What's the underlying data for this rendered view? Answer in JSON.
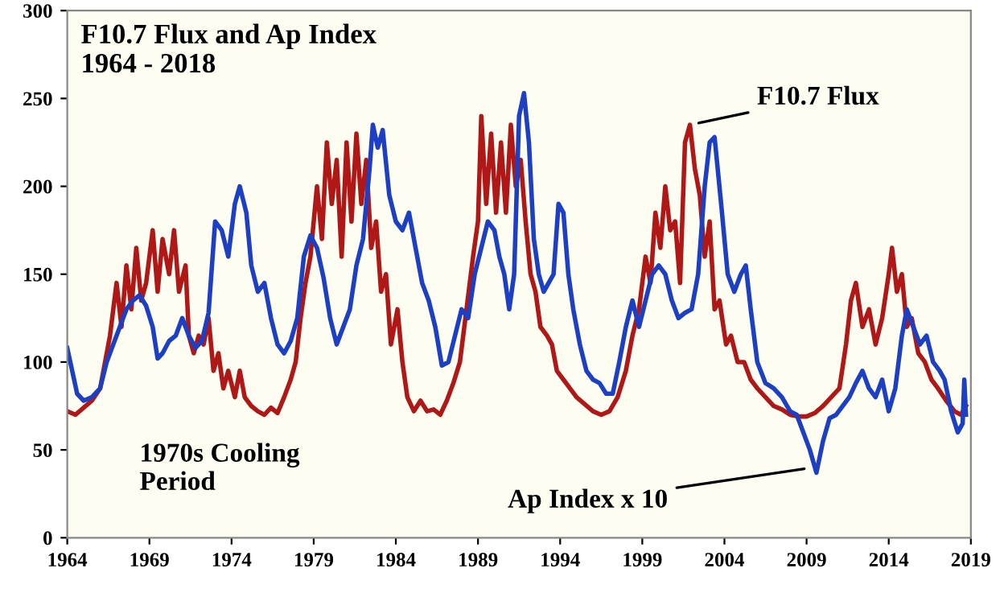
{
  "chart_data": {
    "type": "line",
    "title": "F10.7 Flux and Ap Index\n1964 - 2018",
    "xlim": [
      1964,
      2019
    ],
    "xticks": [
      1964,
      1969,
      1974,
      1979,
      1984,
      1989,
      1994,
      1999,
      2004,
      2009,
      2014,
      2019
    ],
    "ylim": [
      0,
      300
    ],
    "yticks": [
      0,
      50,
      100,
      150,
      200,
      250,
      300
    ],
    "grid": false,
    "marker": "none",
    "line_style": "solid",
    "series": [
      {
        "color": "#b01818",
        "x": [
          1964.0,
          1964.5,
          1965,
          1965.5,
          1966,
          1966.3,
          1966.6,
          1967,
          1967.3,
          1967.6,
          1967.9,
          1968.2,
          1968.5,
          1968.8,
          1969.2,
          1969.5,
          1969.8,
          1970.2,
          1970.5,
          1970.8,
          1971.2,
          1971.4,
          1971.7,
          1972,
          1972.3,
          1972.6,
          1972.9,
          1973.2,
          1973.5,
          1973.8,
          1974.2,
          1974.5,
          1974.8,
          1975.2,
          1975.6,
          1976,
          1976.4,
          1976.8,
          1977.2,
          1977.6,
          1977.9,
          1978.2,
          1978.5,
          1978.8,
          1979.2,
          1979.5,
          1979.8,
          1980.1,
          1980.4,
          1980.7,
          1981,
          1981.3,
          1981.6,
          1981.9,
          1982.2,
          1982.5,
          1982.8,
          1983.1,
          1983.4,
          1983.7,
          1984.1,
          1984.4,
          1984.7,
          1985.1,
          1985.5,
          1985.9,
          1986.3,
          1986.7,
          1987.1,
          1987.5,
          1987.9,
          1988.3,
          1988.7,
          1989.0,
          1989.2,
          1989.5,
          1989.8,
          1990.1,
          1990.4,
          1990.7,
          1991.0,
          1991.3,
          1991.6,
          1991.9,
          1992.2,
          1992.5,
          1992.8,
          1993.2,
          1993.5,
          1993.8,
          1994.2,
          1994.6,
          1995,
          1995.5,
          1996,
          1996.5,
          1997,
          1997.5,
          1998,
          1998.4,
          1998.8,
          1999.2,
          1999.5,
          1999.8,
          2000.1,
          2000.4,
          2000.7,
          2001.0,
          2001.3,
          2001.6,
          2001.9,
          2002.2,
          2002.5,
          2002.8,
          2003.1,
          2003.4,
          2003.7,
          2004.1,
          2004.4,
          2004.8,
          2005.2,
          2005.6,
          2006,
          2006.5,
          2007,
          2007.5,
          2008,
          2008.5,
          2009,
          2009.5,
          2010,
          2010.5,
          2011,
          2011.4,
          2011.7,
          2012.0,
          2012.4,
          2012.8,
          2013.2,
          2013.6,
          2014.0,
          2014.2,
          2014.5,
          2014.8,
          2015.1,
          2015.4,
          2015.8,
          2016.2,
          2016.6,
          2017,
          2017.5,
          2018,
          2018.4,
          2018.7
        ],
        "values": [
          72,
          70,
          74,
          78,
          85,
          100,
          115,
          145,
          120,
          155,
          130,
          165,
          135,
          145,
          175,
          140,
          170,
          150,
          175,
          140,
          155,
          115,
          105,
          115,
          110,
          125,
          95,
          105,
          85,
          95,
          80,
          95,
          80,
          75,
          72,
          70,
          74,
          71,
          80,
          90,
          100,
          125,
          145,
          160,
          200,
          170,
          225,
          190,
          215,
          160,
          225,
          180,
          230,
          190,
          215,
          165,
          180,
          140,
          150,
          110,
          130,
          100,
          80,
          72,
          78,
          72,
          73,
          70,
          78,
          88,
          100,
          130,
          160,
          180,
          240,
          190,
          230,
          185,
          225,
          185,
          235,
          200,
          215,
          180,
          150,
          140,
          120,
          115,
          110,
          95,
          90,
          85,
          80,
          76,
          72,
          70,
          72,
          80,
          95,
          115,
          130,
          160,
          145,
          185,
          165,
          200,
          175,
          180,
          145,
          225,
          235,
          210,
          195,
          160,
          180,
          130,
          135,
          110,
          115,
          100,
          100,
          90,
          85,
          80,
          75,
          73,
          70,
          69,
          69,
          71,
          75,
          80,
          85,
          110,
          135,
          145,
          120,
          130,
          110,
          125,
          150,
          165,
          140,
          150,
          120,
          125,
          105,
          100,
          90,
          85,
          78,
          72,
          70,
          75
        ]
      },
      {
        "color": "#1c3fc4",
        "x": [
          1964.0,
          1964.3,
          1964.6,
          1965,
          1965.5,
          1966,
          1966.4,
          1966.8,
          1967.2,
          1967.6,
          1968,
          1968.4,
          1968.8,
          1969.2,
          1969.5,
          1969.8,
          1970.2,
          1970.6,
          1971,
          1971.4,
          1971.8,
          1972.2,
          1972.6,
          1973.0,
          1973.4,
          1973.8,
          1974.2,
          1974.5,
          1974.9,
          1975.2,
          1975.6,
          1976,
          1976.4,
          1976.8,
          1977.2,
          1977.6,
          1978,
          1978.4,
          1978.8,
          1979.2,
          1979.6,
          1980,
          1980.4,
          1980.8,
          1981.2,
          1981.6,
          1982,
          1982.4,
          1982.6,
          1982.9,
          1983.2,
          1983.6,
          1984,
          1984.4,
          1984.8,
          1985.2,
          1985.6,
          1986,
          1986.4,
          1986.8,
          1987.2,
          1987.6,
          1988,
          1988.4,
          1988.8,
          1989.2,
          1989.6,
          1990,
          1990.3,
          1990.6,
          1990.9,
          1991.2,
          1991.5,
          1991.8,
          1992.1,
          1992.4,
          1992.7,
          1993,
          1993.3,
          1993.6,
          1993.9,
          1994.2,
          1994.5,
          1994.8,
          1995.2,
          1995.6,
          1996,
          1996.4,
          1996.8,
          1997.2,
          1997.6,
          1998,
          1998.4,
          1998.8,
          1999.2,
          1999.6,
          2000,
          2000.4,
          2000.8,
          2001.2,
          2001.6,
          2002,
          2002.4,
          2002.8,
          2003.1,
          2003.4,
          2003.8,
          2004.2,
          2004.6,
          2005.0,
          2005.3,
          2005.6,
          2006,
          2006.5,
          2007,
          2007.5,
          2008,
          2008.4,
          2008.8,
          2009.2,
          2009.6,
          2010,
          2010.4,
          2010.8,
          2011.2,
          2011.6,
          2012,
          2012.4,
          2012.8,
          2013.2,
          2013.6,
          2014,
          2014.4,
          2014.8,
          2015.1,
          2015.5,
          2015.9,
          2016.3,
          2016.7,
          2017.1,
          2017.4,
          2017.8,
          2018.2,
          2018.5,
          2018.6,
          2018.7
        ],
        "values": [
          108,
          95,
          82,
          78,
          80,
          85,
          100,
          110,
          120,
          130,
          135,
          138,
          132,
          120,
          102,
          105,
          112,
          115,
          125,
          115,
          108,
          112,
          128,
          180,
          175,
          160,
          190,
          200,
          185,
          155,
          140,
          145,
          125,
          110,
          105,
          112,
          125,
          160,
          172,
          165,
          148,
          125,
          110,
          120,
          130,
          155,
          170,
          210,
          235,
          222,
          232,
          195,
          180,
          175,
          185,
          165,
          145,
          135,
          120,
          98,
          100,
          115,
          130,
          125,
          150,
          165,
          180,
          175,
          160,
          150,
          130,
          150,
          240,
          253,
          225,
          170,
          150,
          140,
          145,
          150,
          190,
          185,
          150,
          130,
          110,
          95,
          90,
          88,
          82,
          82,
          100,
          120,
          135,
          120,
          135,
          150,
          155,
          150,
          135,
          125,
          128,
          130,
          150,
          200,
          225,
          228,
          190,
          150,
          140,
          150,
          155,
          130,
          100,
          88,
          85,
          80,
          72,
          70,
          60,
          50,
          37,
          55,
          68,
          70,
          75,
          80,
          88,
          95,
          85,
          80,
          90,
          72,
          85,
          115,
          130,
          120,
          110,
          115,
          100,
          95,
          90,
          72,
          60,
          65,
          90,
          70
        ]
      }
    ],
    "annotations": [
      {
        "text": "F10.7 Flux",
        "x": 2001.9,
        "y": 235
      },
      {
        "text": "Ap Index x 10",
        "x": 2009.4,
        "y": 40
      },
      "1970s Cooling\nPeriod"
    ]
  }
}
